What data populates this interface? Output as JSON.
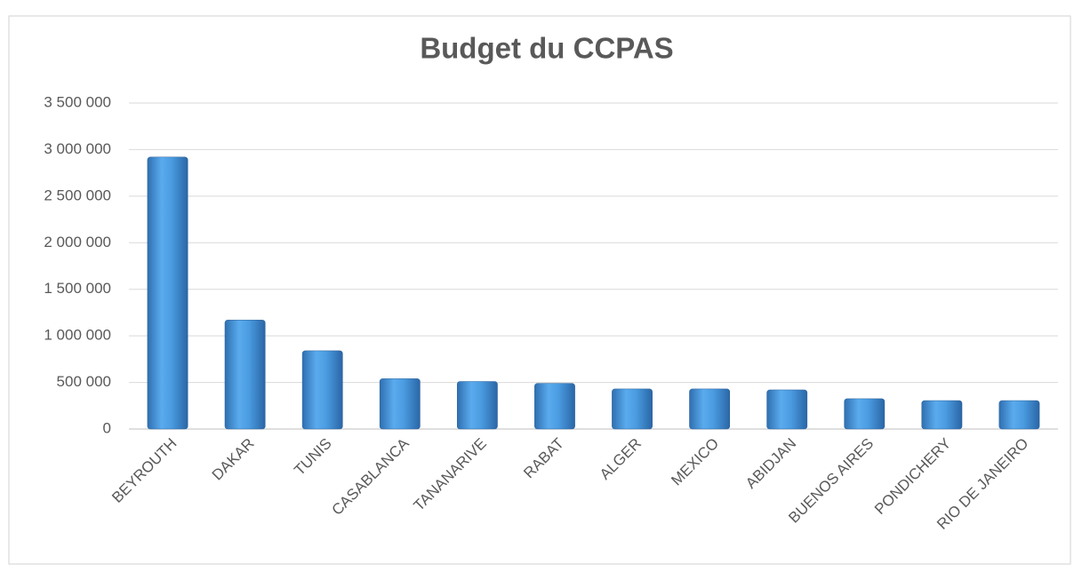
{
  "chart_data": {
    "type": "bar",
    "title": "Budget du CCPAS",
    "categories": [
      "BEYROUTH",
      "DAKAR",
      "TUNIS",
      "CASABLANCA",
      "TANANARIVE",
      "RABAT",
      "ALGER",
      "MEXICO",
      "ABIDJAN",
      "BUENOS AIRES",
      "PONDICHERY",
      "RIO DE JANEIRO"
    ],
    "values": [
      2920000,
      1170000,
      840000,
      540000,
      510000,
      490000,
      430000,
      430000,
      420000,
      325000,
      305000,
      305000
    ],
    "color": "#4a9be0",
    "ylim": [
      0,
      3500000
    ],
    "yticks": [
      0,
      {
        "value": 500000,
        "label": "500 000"
      },
      {
        "value": 1000000,
        "label": "1 000 000"
      },
      {
        "value": 1500000,
        "label": "1 500 000"
      },
      {
        "value": 2000000,
        "label": "2 000 000"
      },
      {
        "value": 2500000,
        "label": "2 500 000"
      },
      {
        "value": 3000000,
        "label": "3 000 000"
      },
      {
        "value": 3500000,
        "label": "3 500 000"
      }
    ],
    "grid": true
  }
}
